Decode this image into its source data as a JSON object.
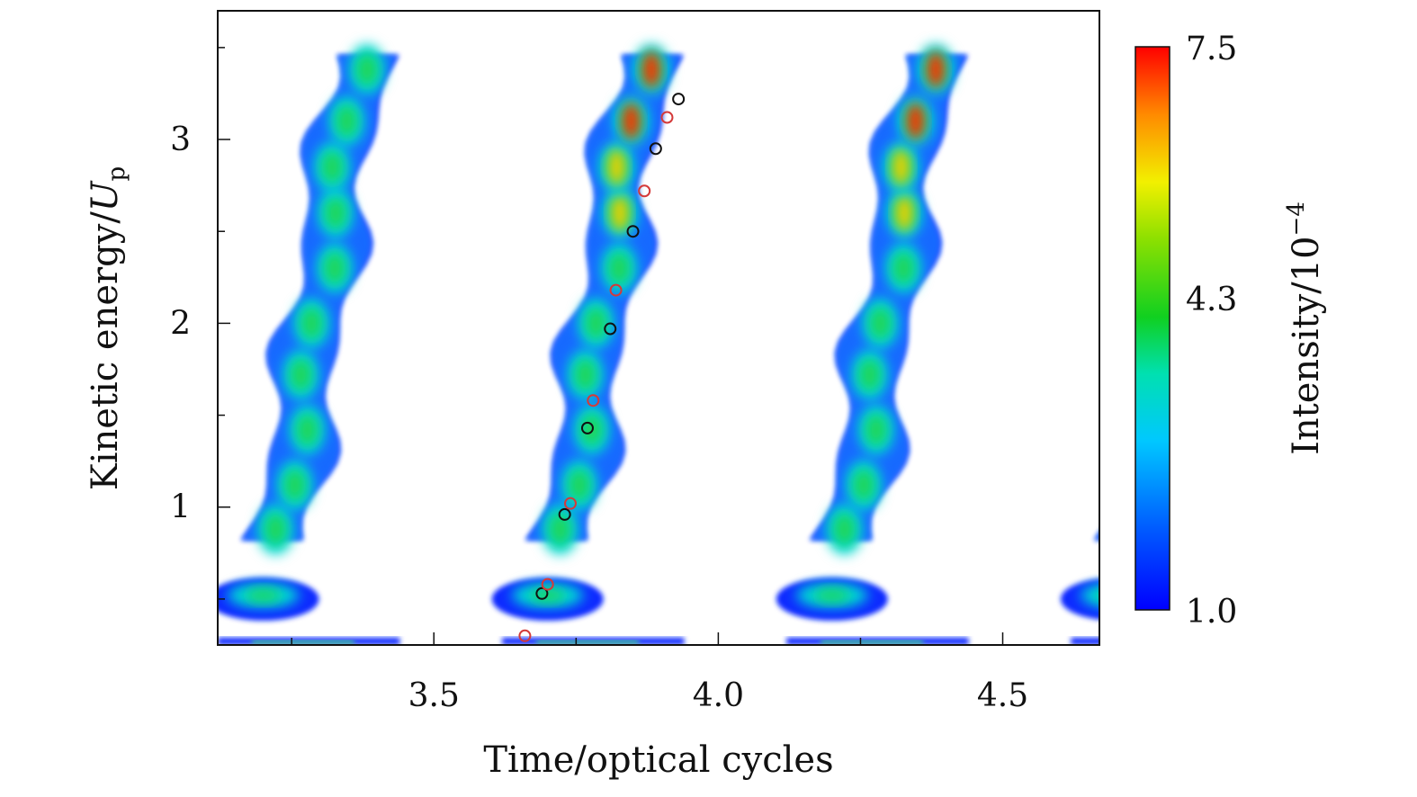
{
  "chart_data": {
    "type": "heatmap",
    "xlabel": "Time/optical cycles",
    "ylabel": "Kinetic energy/",
    "ylabel_symbol": "U",
    "ylabel_subscript": "p",
    "xlim": [
      3.12,
      4.67
    ],
    "ylim": [
      0.25,
      3.7
    ],
    "xticks": [
      "3.5",
      "4.0",
      "4.5"
    ],
    "xtick_values": [
      3.5,
      4.0,
      4.5
    ],
    "yticks": [
      "1",
      "2",
      "3"
    ],
    "ytick_values": [
      1,
      2,
      3
    ],
    "colorbar": {
      "label": "Intensity/10",
      "exponent": "−4",
      "min_label": "1.0",
      "mid_label": "4.3",
      "max_label": "7.5",
      "min": 1.0,
      "mid": 4.3,
      "max": 7.5,
      "colormap": "jet"
    },
    "colors": {
      "contour_low": "#0a2bff",
      "contour_mid": "#1fd65a",
      "contour_high": "#ff2a00",
      "marker_black": "#111111",
      "marker_red": "#d43a3a"
    },
    "bands": [
      {
        "period_start": 3.24,
        "peak_intensity": 5.5
      },
      {
        "period_start": 3.74,
        "peak_intensity": 7.5
      },
      {
        "period_start": 4.24,
        "peak_intensity": 7.0
      }
    ],
    "series": [
      {
        "marker": "black-circle",
        "points": [
          [
            3.69,
            0.53
          ],
          [
            3.73,
            0.96
          ],
          [
            3.77,
            1.43
          ],
          [
            3.81,
            1.97
          ],
          [
            3.85,
            2.5
          ],
          [
            3.89,
            2.95
          ],
          [
            3.93,
            3.22
          ]
        ]
      },
      {
        "marker": "red-circle",
        "points": [
          [
            3.66,
            0.3
          ],
          [
            3.7,
            0.58
          ],
          [
            3.74,
            1.02
          ],
          [
            3.78,
            1.58
          ],
          [
            3.82,
            2.18
          ],
          [
            3.87,
            2.72
          ],
          [
            3.91,
            3.12
          ]
        ]
      }
    ]
  }
}
